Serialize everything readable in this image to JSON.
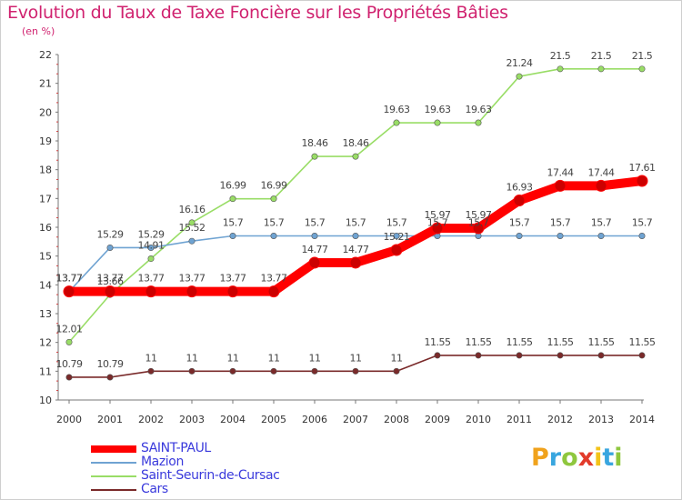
{
  "chart_data": {
    "type": "line",
    "title": "Evolution du Taux de Taxe Foncière sur les Propriétés Bâties",
    "subtitle": "(en %)",
    "x": [
      "2000",
      "2001",
      "2002",
      "2003",
      "2004",
      "2005",
      "2006",
      "2007",
      "2008",
      "2009",
      "2010",
      "2011",
      "2012",
      "2013",
      "2014"
    ],
    "ylim": [
      10,
      22
    ],
    "yticks": [
      10,
      11,
      12,
      13,
      14,
      15,
      16,
      17,
      18,
      19,
      20,
      21,
      22
    ],
    "grid": false,
    "legend": "bottom-left",
    "series": [
      {
        "name": "SAINT-PAUL",
        "color": "#ff0000",
        "values": [
          13.77,
          13.77,
          13.77,
          13.77,
          13.77,
          13.77,
          14.77,
          14.77,
          15.21,
          15.97,
          15.97,
          16.93,
          17.44,
          17.44,
          17.61
        ],
        "labels": [
          "13.77",
          "13.77",
          "13.77",
          "13.77",
          "13.77",
          "13.77",
          "14.77",
          "14.77",
          "15.21",
          "15.97",
          "15.97",
          "16.93",
          "17.44",
          "17.44",
          "17.61"
        ]
      },
      {
        "name": "Mazion",
        "color": "#6fa3d2",
        "values": [
          13.77,
          15.29,
          15.29,
          15.52,
          15.7,
          15.7,
          15.7,
          15.7,
          15.7,
          15.7,
          15.7,
          15.7,
          15.7,
          15.7,
          15.7
        ],
        "labels": [
          "13.77",
          "15.29",
          "15.29",
          "15.52",
          "15.7",
          "15.7",
          "15.7",
          "15.7",
          "15.7",
          "15.7",
          "15.7",
          "15.7",
          "15.7",
          "15.7",
          "15.7"
        ]
      },
      {
        "name": "Saint-Seurin-de-Cursac",
        "color": "#99dd66",
        "values": [
          12.01,
          13.66,
          14.91,
          16.16,
          16.99,
          16.99,
          18.46,
          18.46,
          19.63,
          19.63,
          19.63,
          21.24,
          21.5,
          21.5,
          21.5
        ],
        "labels": [
          "12.01",
          "13.66",
          "14.91",
          "16.16",
          "16.99",
          "16.99",
          "18.46",
          "18.46",
          "19.63",
          "19.63",
          "19.63",
          "21.24",
          "21.5",
          "21.5",
          "21.5"
        ]
      },
      {
        "name": "Cars",
        "color": "#7a2a2a",
        "values": [
          10.79,
          10.79,
          11,
          11,
          11,
          11,
          11,
          11,
          11,
          11.55,
          11.55,
          11.55,
          11.55,
          11.55,
          11.55
        ],
        "labels": [
          "10.79",
          "10.79",
          "11",
          "11",
          "11",
          "11",
          "11",
          "11",
          "11",
          "11.55",
          "11.55",
          "11.55",
          "11.55",
          "11.55",
          "11.55"
        ]
      }
    ]
  },
  "brand": {
    "letters": [
      "P",
      "r",
      "o",
      "x",
      "i",
      "t",
      "i"
    ],
    "colors": [
      "#f0a21c",
      "#39a6df",
      "#8fc73e",
      "#e23b2b",
      "#f3c318",
      "#39a6df",
      "#8fc73e"
    ]
  }
}
